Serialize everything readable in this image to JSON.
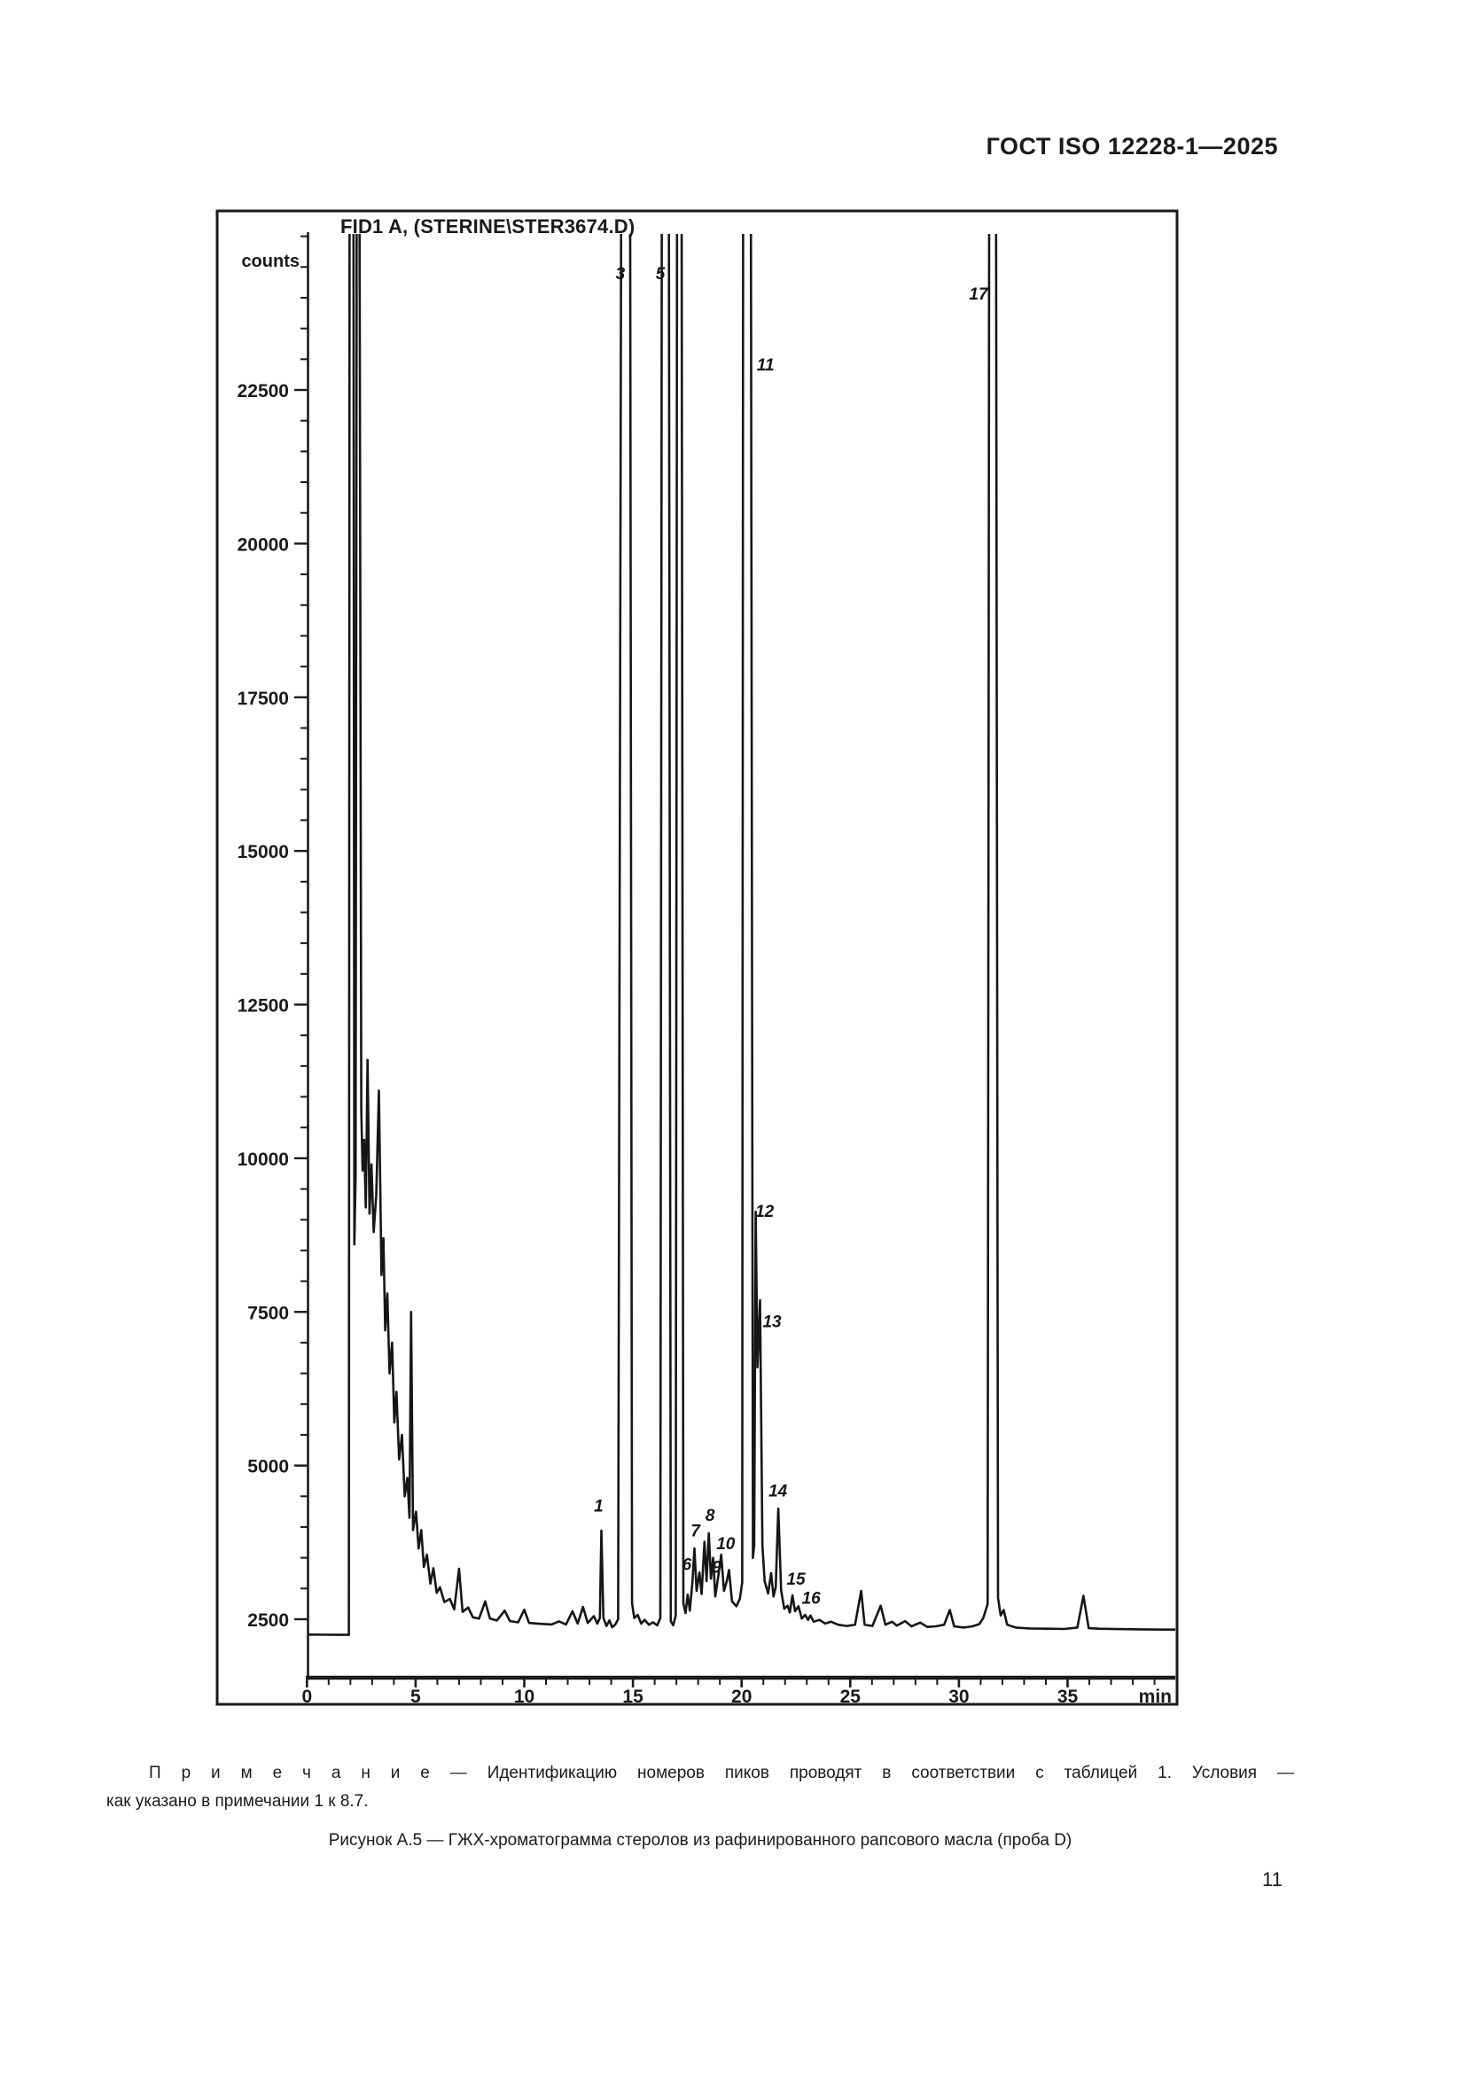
{
  "page": {
    "header": "ГОСТ ISO 12228-1—2025",
    "page_number": "11"
  },
  "note": {
    "line1": "П р и м е ч а н и е  — Идентификацию номеров пиков проводят в соответствии с таблицей 1. Условия —",
    "line2": "как указано в примечании 1 к 8.7."
  },
  "caption": "Рисунок А.5 — ГЖХ-хроматограмма стеролов из рафинированного рапсового масла (проба D)",
  "chart_data": {
    "type": "line",
    "title": "FID1 A, (STERINE\\STER3674.D)",
    "ylabel": "counts",
    "x_unit": "min",
    "x_ticks_major": [
      0,
      5,
      10,
      15,
      20,
      25,
      30,
      35
    ],
    "x_minor_step": 1,
    "x_max": 39.9,
    "y_ticks_major": [
      2500,
      5000,
      7500,
      10000,
      12500,
      15000,
      17500,
      20000,
      22500
    ],
    "y_minor_step": 500,
    "ylim": [
      1550,
      25050
    ],
    "grid": "off",
    "line_color": "#161616",
    "peaks": [
      {
        "label": "1",
        "t": 13.42,
        "c": 4250
      },
      {
        "label": "3",
        "t": 14.42,
        "c": 24300
      },
      {
        "label": "5",
        "t": 16.26,
        "c": 24300
      },
      {
        "label": "6",
        "t": 17.48,
        "c": 3300
      },
      {
        "label": "7",
        "t": 17.88,
        "c": 3850
      },
      {
        "label": "8",
        "t": 18.55,
        "c": 4100
      },
      {
        "label": "9",
        "t": 18.85,
        "c": 3260
      },
      {
        "label": "10",
        "t": 19.27,
        "c": 3640
      },
      {
        "label": "11",
        "t": 21.1,
        "c": 22820
      },
      {
        "label": "12",
        "t": 21.06,
        "c": 9050
      },
      {
        "label": "13",
        "t": 21.4,
        "c": 7250
      },
      {
        "label": "14",
        "t": 21.67,
        "c": 4500
      },
      {
        "label": "15",
        "t": 22.5,
        "c": 3060
      },
      {
        "label": "16",
        "t": 23.2,
        "c": 2750
      },
      {
        "label": "17",
        "t": 30.9,
        "c": 23970
      }
    ],
    "trace": [
      [
        0,
        2250
      ],
      [
        0.9,
        2248
      ],
      [
        1.93,
        2246
      ],
      [
        1.96,
        26000
      ],
      [
        2.14,
        26000
      ],
      [
        2.18,
        8600
      ],
      [
        2.24,
        9700
      ],
      [
        2.29,
        26000
      ],
      [
        2.42,
        26000
      ],
      [
        2.5,
        10800
      ],
      [
        2.56,
        9800
      ],
      [
        2.63,
        10300
      ],
      [
        2.71,
        9200
      ],
      [
        2.79,
        11600
      ],
      [
        2.88,
        9100
      ],
      [
        2.97,
        9900
      ],
      [
        3.07,
        8800
      ],
      [
        3.19,
        9400
      ],
      [
        3.31,
        11100
      ],
      [
        3.43,
        8100
      ],
      [
        3.52,
        8700
      ],
      [
        3.6,
        7200
      ],
      [
        3.7,
        7800
      ],
      [
        3.8,
        6500
      ],
      [
        3.92,
        7000
      ],
      [
        4.02,
        5700
      ],
      [
        4.12,
        6200
      ],
      [
        4.24,
        5100
      ],
      [
        4.37,
        5500
      ],
      [
        4.5,
        4500
      ],
      [
        4.62,
        4800
      ],
      [
        4.72,
        4150
      ],
      [
        4.79,
        7500
      ],
      [
        4.88,
        3950
      ],
      [
        5.02,
        4250
      ],
      [
        5.14,
        3650
      ],
      [
        5.26,
        3950
      ],
      [
        5.38,
        3350
      ],
      [
        5.52,
        3550
      ],
      [
        5.68,
        3080
      ],
      [
        5.82,
        3330
      ],
      [
        5.97,
        2930
      ],
      [
        6.12,
        3020
      ],
      [
        6.32,
        2780
      ],
      [
        6.58,
        2830
      ],
      [
        6.78,
        2660
      ],
      [
        7.0,
        3320
      ],
      [
        7.16,
        2620
      ],
      [
        7.42,
        2690
      ],
      [
        7.64,
        2530
      ],
      [
        7.92,
        2510
      ],
      [
        8.2,
        2790
      ],
      [
        8.42,
        2510
      ],
      [
        8.74,
        2480
      ],
      [
        9.1,
        2640
      ],
      [
        9.34,
        2470
      ],
      [
        9.72,
        2450
      ],
      [
        10.0,
        2655
      ],
      [
        10.22,
        2440
      ],
      [
        10.75,
        2425
      ],
      [
        11.25,
        2415
      ],
      [
        11.6,
        2465
      ],
      [
        11.92,
        2415
      ],
      [
        12.22,
        2630
      ],
      [
        12.46,
        2430
      ],
      [
        12.7,
        2700
      ],
      [
        12.92,
        2440
      ],
      [
        13.2,
        2550
      ],
      [
        13.36,
        2430
      ],
      [
        13.48,
        2520
      ],
      [
        13.55,
        3940
      ],
      [
        13.64,
        2520
      ],
      [
        13.78,
        2390
      ],
      [
        13.92,
        2480
      ],
      [
        14.04,
        2370
      ],
      [
        14.18,
        2410
      ],
      [
        14.32,
        2500
      ],
      [
        14.46,
        26000
      ],
      [
        14.87,
        26000
      ],
      [
        14.96,
        2760
      ],
      [
        15.06,
        2520
      ],
      [
        15.22,
        2570
      ],
      [
        15.38,
        2430
      ],
      [
        15.54,
        2490
      ],
      [
        15.74,
        2410
      ],
      [
        15.92,
        2450
      ],
      [
        16.12,
        2400
      ],
      [
        16.26,
        2520
      ],
      [
        16.33,
        26000
      ],
      [
        16.65,
        26000
      ],
      [
        16.74,
        2470
      ],
      [
        16.85,
        2400
      ],
      [
        16.97,
        2560
      ],
      [
        17.03,
        26000
      ],
      [
        17.24,
        26000
      ],
      [
        17.32,
        2760
      ],
      [
        17.42,
        2600
      ],
      [
        17.52,
        2900
      ],
      [
        17.62,
        2640
      ],
      [
        17.74,
        3120
      ],
      [
        17.83,
        3650
      ],
      [
        17.93,
        2960
      ],
      [
        18.06,
        3260
      ],
      [
        18.16,
        2910
      ],
      [
        18.29,
        3760
      ],
      [
        18.39,
        3120
      ],
      [
        18.49,
        3900
      ],
      [
        18.59,
        3160
      ],
      [
        18.69,
        3500
      ],
      [
        18.79,
        2870
      ],
      [
        18.93,
        3210
      ],
      [
        19.06,
        3550
      ],
      [
        19.19,
        2960
      ],
      [
        19.32,
        3120
      ],
      [
        19.42,
        3300
      ],
      [
        19.56,
        2790
      ],
      [
        19.76,
        2710
      ],
      [
        19.92,
        2830
      ],
      [
        20.03,
        3100
      ],
      [
        20.07,
        25400
      ],
      [
        20.43,
        25400
      ],
      [
        20.52,
        3500
      ],
      [
        20.58,
        3700
      ],
      [
        20.65,
        9130
      ],
      [
        20.73,
        6600
      ],
      [
        20.85,
        7690
      ],
      [
        20.96,
        3700
      ],
      [
        21.06,
        3120
      ],
      [
        21.22,
        2920
      ],
      [
        21.36,
        3250
      ],
      [
        21.47,
        2870
      ],
      [
        21.57,
        3020
      ],
      [
        21.69,
        4300
      ],
      [
        21.82,
        2970
      ],
      [
        21.96,
        2670
      ],
      [
        22.12,
        2720
      ],
      [
        22.22,
        2610
      ],
      [
        22.34,
        2890
      ],
      [
        22.46,
        2630
      ],
      [
        22.62,
        2710
      ],
      [
        22.77,
        2510
      ],
      [
        22.92,
        2570
      ],
      [
        23.06,
        2490
      ],
      [
        23.17,
        2560
      ],
      [
        23.32,
        2460
      ],
      [
        23.58,
        2490
      ],
      [
        23.84,
        2430
      ],
      [
        24.12,
        2460
      ],
      [
        24.44,
        2410
      ],
      [
        24.84,
        2390
      ],
      [
        25.22,
        2410
      ],
      [
        25.5,
        2960
      ],
      [
        25.66,
        2410
      ],
      [
        26.02,
        2390
      ],
      [
        26.4,
        2720
      ],
      [
        26.62,
        2410
      ],
      [
        26.92,
        2460
      ],
      [
        27.14,
        2395
      ],
      [
        27.52,
        2470
      ],
      [
        27.82,
        2385
      ],
      [
        28.22,
        2445
      ],
      [
        28.54,
        2375
      ],
      [
        28.94,
        2385
      ],
      [
        29.32,
        2410
      ],
      [
        29.58,
        2650
      ],
      [
        29.78,
        2385
      ],
      [
        30.22,
        2365
      ],
      [
        30.62,
        2385
      ],
      [
        30.94,
        2420
      ],
      [
        31.12,
        2520
      ],
      [
        31.32,
        2750
      ],
      [
        31.39,
        25400
      ],
      [
        31.71,
        25400
      ],
      [
        31.8,
        2850
      ],
      [
        31.92,
        2560
      ],
      [
        32.06,
        2650
      ],
      [
        32.22,
        2410
      ],
      [
        32.62,
        2365
      ],
      [
        33.25,
        2350
      ],
      [
        34.05,
        2345
      ],
      [
        34.85,
        2342
      ],
      [
        35.45,
        2365
      ],
      [
        35.73,
        2880
      ],
      [
        35.97,
        2355
      ],
      [
        36.45,
        2345
      ],
      [
        37.25,
        2340
      ],
      [
        38.25,
        2335
      ],
      [
        39.4,
        2332
      ],
      [
        39.92,
        2332
      ]
    ]
  }
}
